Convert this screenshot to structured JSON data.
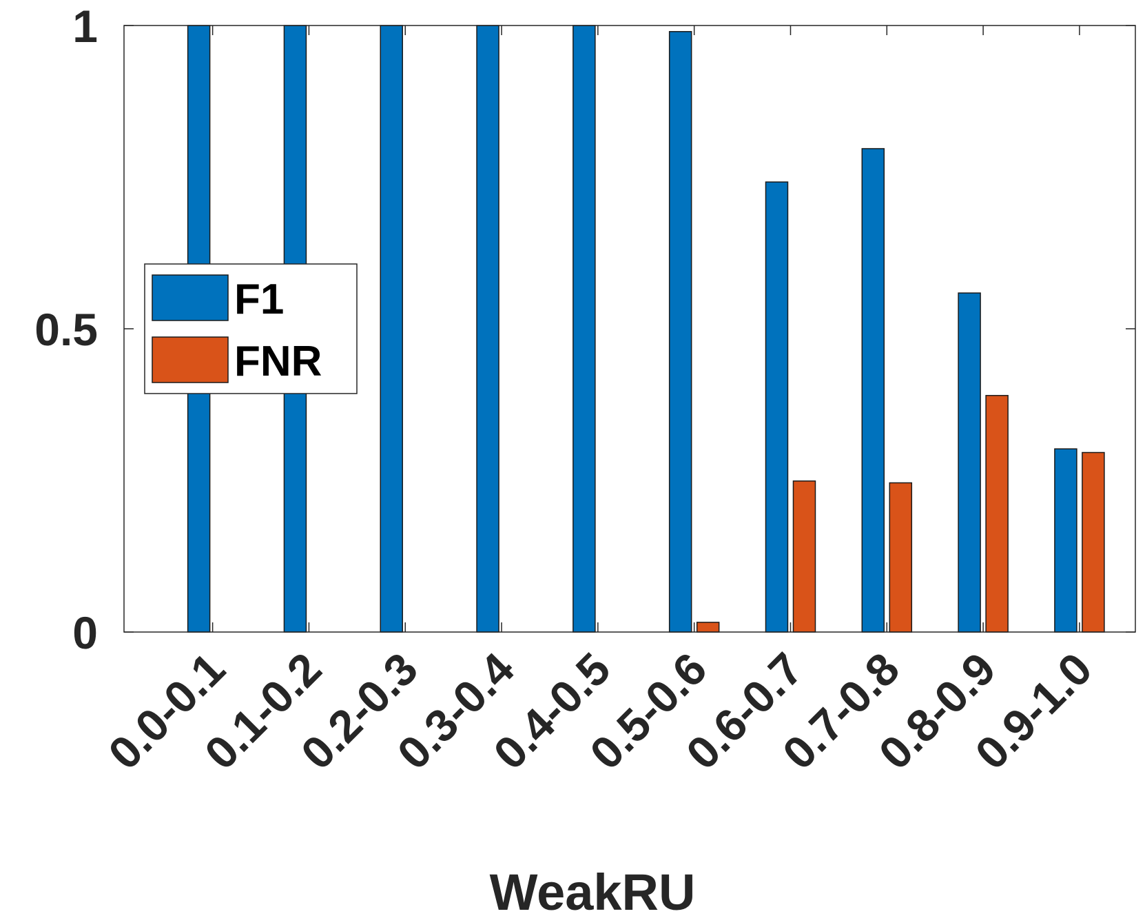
{
  "chart_data": {
    "type": "bar",
    "xlabel": "WeakRU",
    "ylabel": "",
    "ylim": [
      0,
      1
    ],
    "yticks": [
      0,
      0.5,
      1
    ],
    "ytick_labels": [
      "0",
      "0.5",
      "1"
    ],
    "categories": [
      "0.0-0.1",
      "0.1-0.2",
      "0.2-0.3",
      "0.3-0.4",
      "0.4-0.5",
      "0.5-0.6",
      "0.6-0.7",
      "0.7-0.8",
      "0.8-0.9",
      "0.9-1.0"
    ],
    "series": [
      {
        "name": "F1",
        "color": "#0072BD",
        "values": [
          1.0,
          1.0,
          1.0,
          1.0,
          1.0,
          0.99,
          0.742,
          0.797,
          0.559,
          0.302
        ]
      },
      {
        "name": "FNR",
        "color": "#D95319",
        "values": [
          0,
          0,
          0,
          0,
          0,
          0.016,
          0.249,
          0.246,
          0.39,
          0.296
        ]
      }
    ],
    "legend": {
      "placement": "left-center",
      "entries": [
        "F1",
        "FNR"
      ]
    },
    "grid": false
  }
}
